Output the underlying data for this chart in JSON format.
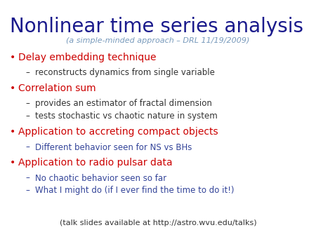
{
  "bg_color": "#ffffff",
  "title": "Nonlinear time series analysis",
  "subtitle": "(a simple-minded approach – DRL 11/19/2009)",
  "title_color": "#1a1a8c",
  "subtitle_color": "#7799bb",
  "bullet_color": "#cc0000",
  "body_color": "#333333",
  "sub_blue_color": "#334499",
  "bullets": [
    {
      "text": "Delay embedding technique",
      "color": "#cc0000",
      "sub": [
        {
          "text": "reconstructs dynamics from single variable",
          "color": "#333333"
        }
      ]
    },
    {
      "text": "Correlation sum",
      "color": "#cc0000",
      "sub": [
        {
          "text": "provides an estimator of fractal dimension",
          "color": "#333333"
        },
        {
          "text": "tests stochastic vs chaotic nature in system",
          "color": "#333333"
        }
      ]
    },
    {
      "text": "Application to accreting compact objects",
      "color": "#cc0000",
      "sub": [
        {
          "text": "Different behavior seen for NS vs BHs",
          "color": "#334499"
        }
      ]
    },
    {
      "text": "Application to radio pulsar data",
      "color": "#cc0000",
      "sub": [
        {
          "text": "No chaotic behavior seen so far",
          "color": "#334499"
        },
        {
          "text": "What I might do (if I ever find the time to do it!)",
          "color": "#334499"
        }
      ]
    }
  ],
  "footer": "(talk slides available at http://astro.wvu.edu/talks)",
  "footer_color": "#333333",
  "title_fontsize": 20,
  "subtitle_fontsize": 8,
  "bullet_fontsize": 10,
  "sub_fontsize": 8.5,
  "footer_fontsize": 8
}
